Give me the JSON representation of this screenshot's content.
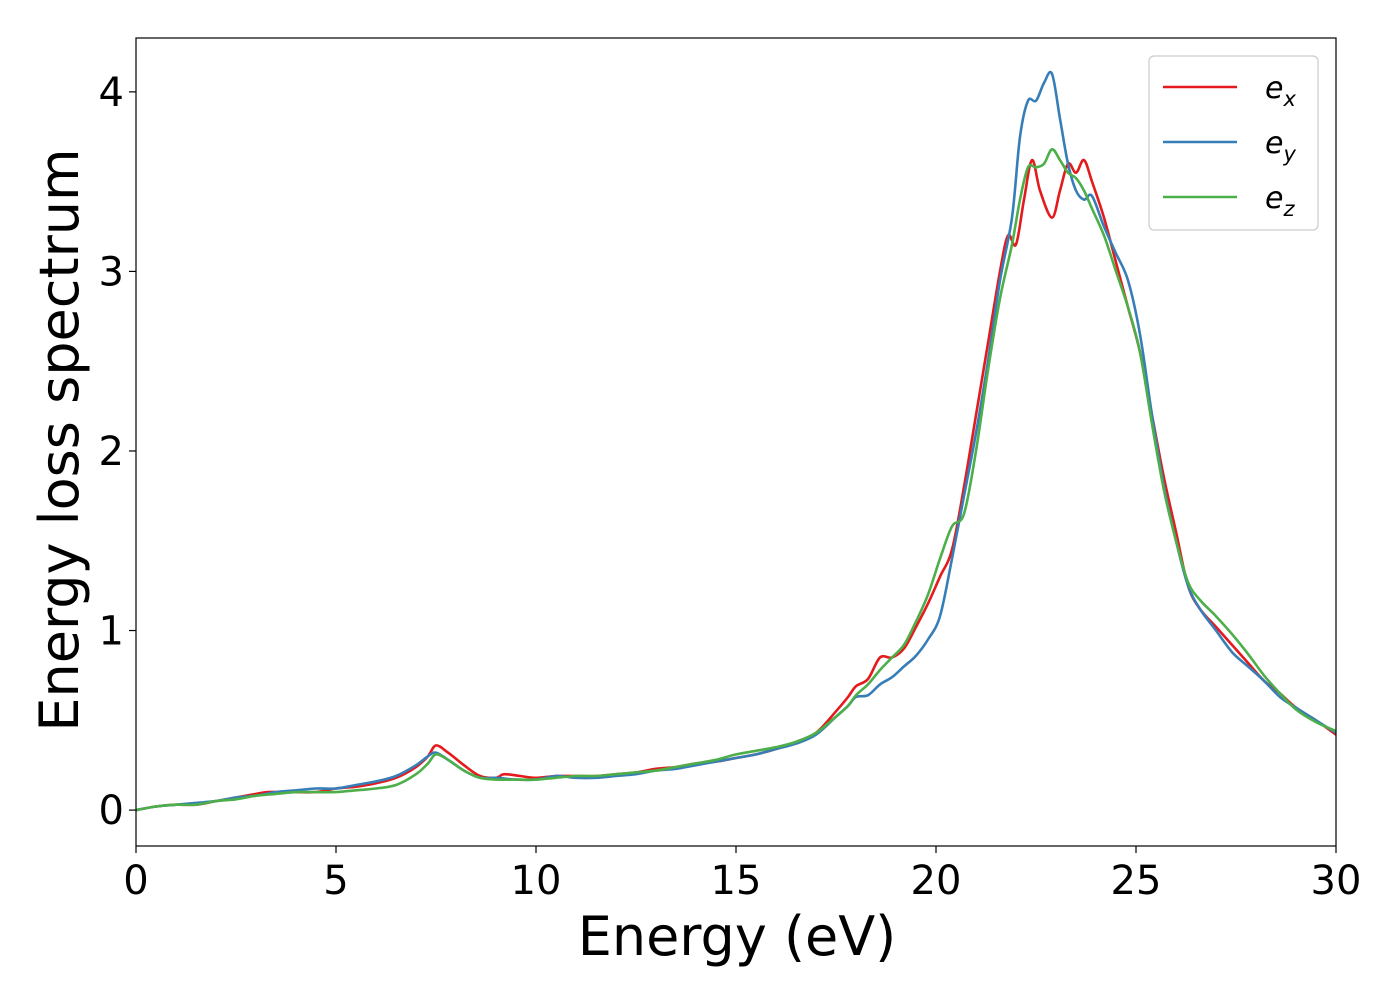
{
  "chart_data": {
    "type": "line",
    "xlabel": "Energy (eV)",
    "ylabel": "Energy loss spectrum",
    "xlim": [
      0,
      30
    ],
    "ylim": [
      -0.2,
      4.3
    ],
    "xticks": [
      "0",
      "5",
      "10",
      "15",
      "20",
      "25",
      "30"
    ],
    "yticks": [
      "0",
      "1",
      "2",
      "3",
      "4"
    ],
    "grid": false,
    "legend_position": "top-right",
    "series": [
      {
        "name": "e",
        "subscript": "x",
        "color": "#e41a1c",
        "x": [
          0,
          0.5,
          1,
          1.5,
          2,
          2.5,
          3,
          3.3,
          3.6,
          4,
          4.5,
          5,
          5.5,
          6,
          6.5,
          7,
          7.3,
          7.5,
          7.8,
          8.2,
          8.6,
          9,
          9.2,
          9.6,
          10,
          10.5,
          11,
          11.5,
          12,
          12.5,
          13,
          13.5,
          14,
          14.5,
          15,
          15.5,
          16,
          16.5,
          17,
          17.5,
          17.8,
          18,
          18.3,
          18.6,
          18.9,
          19.2,
          19.5,
          19.8,
          20.1,
          20.4,
          20.7,
          21,
          21.3,
          21.6,
          21.8,
          22,
          22.2,
          22.4,
          22.6,
          22.9,
          23.1,
          23.3,
          23.5,
          23.7,
          23.9,
          24.2,
          24.5,
          24.8,
          25.1,
          25.4,
          25.7,
          26,
          26.3,
          26.6,
          27,
          27.4,
          27.8,
          28.2,
          28.6,
          29,
          29.5,
          30
        ],
        "y": [
          0,
          0.02,
          0.03,
          0.03,
          0.05,
          0.07,
          0.09,
          0.1,
          0.1,
          0.1,
          0.1,
          0.12,
          0.13,
          0.15,
          0.18,
          0.24,
          0.3,
          0.36,
          0.32,
          0.25,
          0.19,
          0.18,
          0.2,
          0.19,
          0.18,
          0.19,
          0.19,
          0.19,
          0.2,
          0.21,
          0.23,
          0.24,
          0.26,
          0.27,
          0.29,
          0.31,
          0.34,
          0.38,
          0.43,
          0.55,
          0.63,
          0.69,
          0.73,
          0.85,
          0.85,
          0.9,
          1.02,
          1.15,
          1.3,
          1.45,
          1.8,
          2.2,
          2.6,
          3.0,
          3.2,
          3.15,
          3.4,
          3.62,
          3.45,
          3.3,
          3.45,
          3.6,
          3.55,
          3.62,
          3.5,
          3.3,
          3.05,
          2.8,
          2.55,
          2.2,
          1.85,
          1.55,
          1.25,
          1.12,
          1.02,
          0.92,
          0.82,
          0.72,
          0.65,
          0.57,
          0.5,
          0.42
        ]
      },
      {
        "name": "e",
        "subscript": "y",
        "color": "#377eb8",
        "x": [
          0,
          0.5,
          1,
          1.5,
          2,
          2.5,
          3,
          3.5,
          4,
          4.5,
          5,
          5.5,
          6,
          6.5,
          7,
          7.3,
          7.5,
          7.8,
          8.2,
          8.6,
          9,
          9.5,
          10,
          10.5,
          11,
          11.5,
          12,
          12.5,
          13,
          13.5,
          14,
          14.5,
          15,
          15.5,
          16,
          16.5,
          17,
          17.5,
          17.8,
          18,
          18.3,
          18.6,
          18.9,
          19.2,
          19.5,
          19.8,
          20.1,
          20.4,
          20.7,
          21,
          21.3,
          21.6,
          21.9,
          22.1,
          22.3,
          22.5,
          22.7,
          22.9,
          23.1,
          23.3,
          23.5,
          23.7,
          23.9,
          24.2,
          24.5,
          24.8,
          25.1,
          25.4,
          25.7,
          26,
          26.3,
          26.6,
          27,
          27.4,
          27.8,
          28.2,
          28.6,
          29,
          29.5,
          30
        ],
        "y": [
          0,
          0.02,
          0.03,
          0.04,
          0.05,
          0.07,
          0.08,
          0.1,
          0.11,
          0.12,
          0.12,
          0.14,
          0.16,
          0.19,
          0.25,
          0.3,
          0.32,
          0.28,
          0.22,
          0.18,
          0.18,
          0.17,
          0.17,
          0.19,
          0.18,
          0.18,
          0.19,
          0.2,
          0.22,
          0.23,
          0.25,
          0.27,
          0.29,
          0.31,
          0.34,
          0.37,
          0.42,
          0.52,
          0.58,
          0.63,
          0.64,
          0.7,
          0.74,
          0.8,
          0.86,
          0.95,
          1.08,
          1.4,
          1.75,
          2.1,
          2.5,
          2.95,
          3.3,
          3.75,
          3.95,
          3.95,
          4.05,
          4.1,
          3.85,
          3.6,
          3.45,
          3.4,
          3.42,
          3.25,
          3.1,
          2.95,
          2.65,
          2.2,
          1.8,
          1.5,
          1.25,
          1.12,
          1.0,
          0.88,
          0.8,
          0.72,
          0.63,
          0.57,
          0.5,
          0.43
        ]
      },
      {
        "name": "e",
        "subscript": "z",
        "color": "#4daf4a",
        "x": [
          0,
          0.5,
          1,
          1.5,
          2,
          2.5,
          3,
          3.5,
          4,
          4.5,
          5,
          5.5,
          6,
          6.5,
          7,
          7.3,
          7.5,
          7.8,
          8.2,
          8.6,
          9,
          9.5,
          10,
          10.5,
          11,
          11.5,
          12,
          12.5,
          13,
          13.5,
          14,
          14.5,
          15,
          15.5,
          16,
          16.5,
          17,
          17.5,
          17.8,
          18,
          18.3,
          18.6,
          18.9,
          19.2,
          19.5,
          19.8,
          20.1,
          20.4,
          20.7,
          21,
          21.3,
          21.6,
          21.9,
          22.1,
          22.3,
          22.5,
          22.7,
          22.9,
          23.1,
          23.3,
          23.5,
          23.7,
          23.9,
          24.2,
          24.5,
          24.8,
          25.1,
          25.4,
          25.7,
          26,
          26.3,
          26.6,
          27,
          27.4,
          27.8,
          28.2,
          28.6,
          29,
          29.5,
          30
        ],
        "y": [
          0,
          0.02,
          0.03,
          0.03,
          0.05,
          0.06,
          0.08,
          0.09,
          0.1,
          0.1,
          0.1,
          0.11,
          0.12,
          0.14,
          0.2,
          0.26,
          0.31,
          0.28,
          0.22,
          0.18,
          0.17,
          0.17,
          0.17,
          0.18,
          0.19,
          0.19,
          0.2,
          0.21,
          0.22,
          0.24,
          0.26,
          0.28,
          0.31,
          0.33,
          0.35,
          0.38,
          0.43,
          0.52,
          0.58,
          0.64,
          0.7,
          0.78,
          0.85,
          0.92,
          1.05,
          1.2,
          1.4,
          1.58,
          1.65,
          2.0,
          2.45,
          2.85,
          3.15,
          3.4,
          3.58,
          3.58,
          3.6,
          3.68,
          3.62,
          3.55,
          3.52,
          3.45,
          3.35,
          3.2,
          3.0,
          2.8,
          2.55,
          2.15,
          1.78,
          1.5,
          1.27,
          1.17,
          1.08,
          0.98,
          0.87,
          0.75,
          0.65,
          0.56,
          0.49,
          0.44
        ]
      }
    ]
  }
}
